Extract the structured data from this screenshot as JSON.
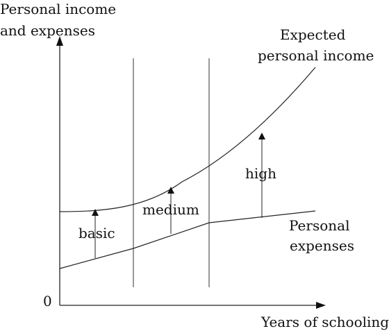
{
  "diagram": {
    "y_axis_label": [
      "Personal income",
      "and expenses"
    ],
    "x_axis_label": "Years of schooling",
    "origin_label": "0",
    "curves": {
      "income_label": [
        "Expected",
        "personal income"
      ],
      "expenses_label": [
        "Personal",
        "expenses"
      ]
    },
    "levels": {
      "basic": "basic",
      "medium": "medium",
      "high": "high"
    },
    "colors": {
      "stroke": "#222222",
      "text": "#111111",
      "background": "#ffffff"
    }
  }
}
